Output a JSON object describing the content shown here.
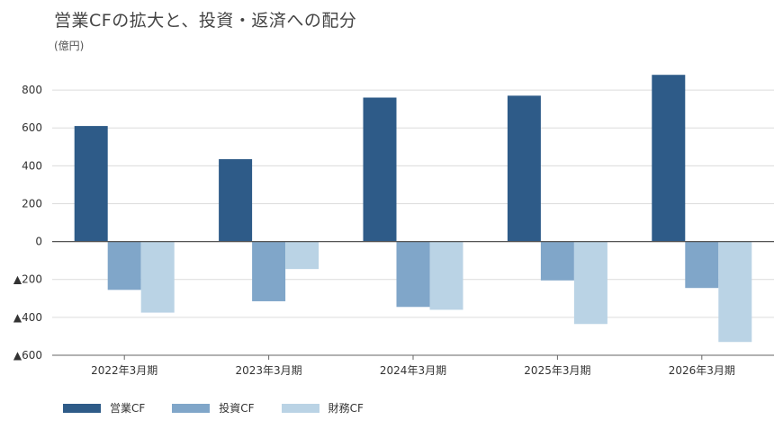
{
  "title": "営業CFの拡大と、投資・返済への配分",
  "unit": "(億円)",
  "chart_data": {
    "type": "bar",
    "categories": [
      "2022年3月期",
      "2023年3月期",
      "2024年3月期",
      "2025年3月期",
      "2026年3月期"
    ],
    "series": [
      {
        "name": "営業CF",
        "color": "#2e5b88",
        "values": [
          610,
          435,
          760,
          770,
          880
        ]
      },
      {
        "name": "投資CF",
        "color": "#80a6c9",
        "values": [
          -255,
          -315,
          -345,
          -205,
          -245
        ]
      },
      {
        "name": "財務CF",
        "color": "#bad3e5",
        "values": [
          -375,
          -145,
          -360,
          -435,
          -530
        ]
      }
    ],
    "ylim": [
      -600,
      900
    ],
    "yticks": [
      800,
      600,
      400,
      200,
      0,
      -200,
      -400,
      -600
    ],
    "ytick_labels": [
      "800",
      "600",
      "400",
      "200",
      "0",
      "▲200",
      "▲400",
      "▲600"
    ],
    "grid": true,
    "legend_position": "bottom-left"
  }
}
